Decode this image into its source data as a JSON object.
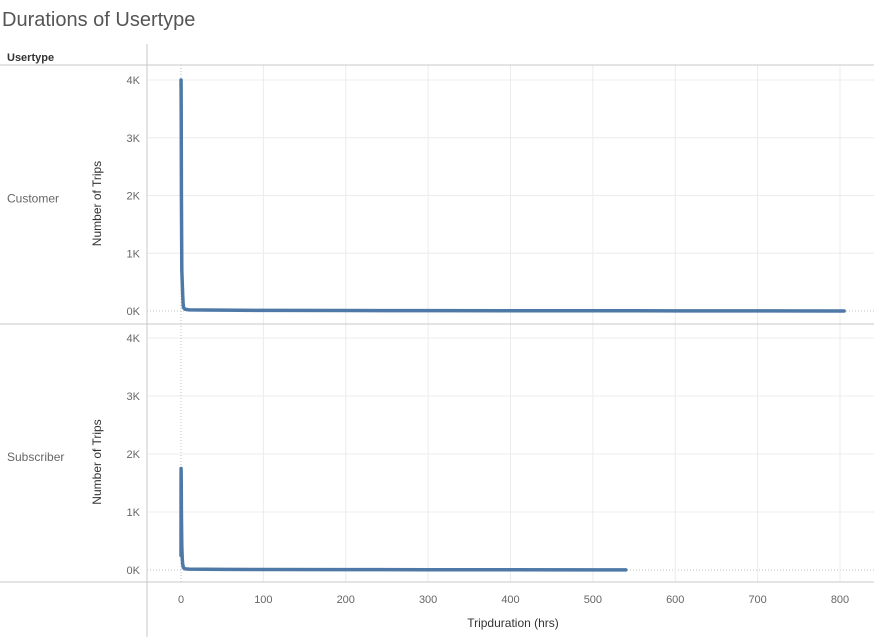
{
  "title": "Durations of Usertype",
  "row_header": "Usertype",
  "colors": {
    "line": "#4e79a7",
    "grid": "#ececec",
    "divider": "#c8c8c8",
    "zero_line": "#c0c0c0"
  },
  "chart_data": {
    "type": "line",
    "xlabel": "Tripduration (hrs)",
    "ylabel": "Number of Trips",
    "xlim": [
      -40,
      820
    ],
    "ylim": [
      0,
      4200
    ],
    "x_ticks": [
      0,
      100,
      200,
      300,
      400,
      500,
      600,
      700,
      800
    ],
    "x_tick_labels": [
      "0",
      "100",
      "200",
      "300",
      "400",
      "500",
      "600",
      "700",
      "800"
    ],
    "y_ticks": [
      0,
      1000,
      2000,
      3000,
      4000
    ],
    "y_tick_labels": [
      "0K",
      "1K",
      "2K",
      "3K",
      "4K"
    ],
    "grid": true,
    "panels": [
      {
        "name": "Customer",
        "series": {
          "x": [
            0,
            0.1,
            0.3,
            0.5,
            0.8,
            1,
            1.5,
            2,
            2.5,
            3,
            5,
            10,
            50,
            100,
            200,
            300,
            400,
            500,
            600,
            700,
            805
          ],
          "y": [
            3900,
            4000,
            3200,
            2000,
            1200,
            700,
            500,
            300,
            150,
            60,
            30,
            20,
            15,
            10,
            8,
            6,
            5,
            4,
            3,
            2,
            1
          ]
        }
      },
      {
        "name": "Subscriber",
        "series": {
          "x": [
            0,
            0.1,
            0.3,
            0.5,
            0.8,
            1,
            1.5,
            2,
            3,
            5,
            10,
            50,
            100,
            200,
            300,
            400,
            500,
            540
          ],
          "y": [
            250,
            1750,
            1500,
            1000,
            600,
            400,
            200,
            100,
            40,
            20,
            15,
            10,
            8,
            6,
            5,
            4,
            3,
            2
          ]
        }
      }
    ]
  }
}
